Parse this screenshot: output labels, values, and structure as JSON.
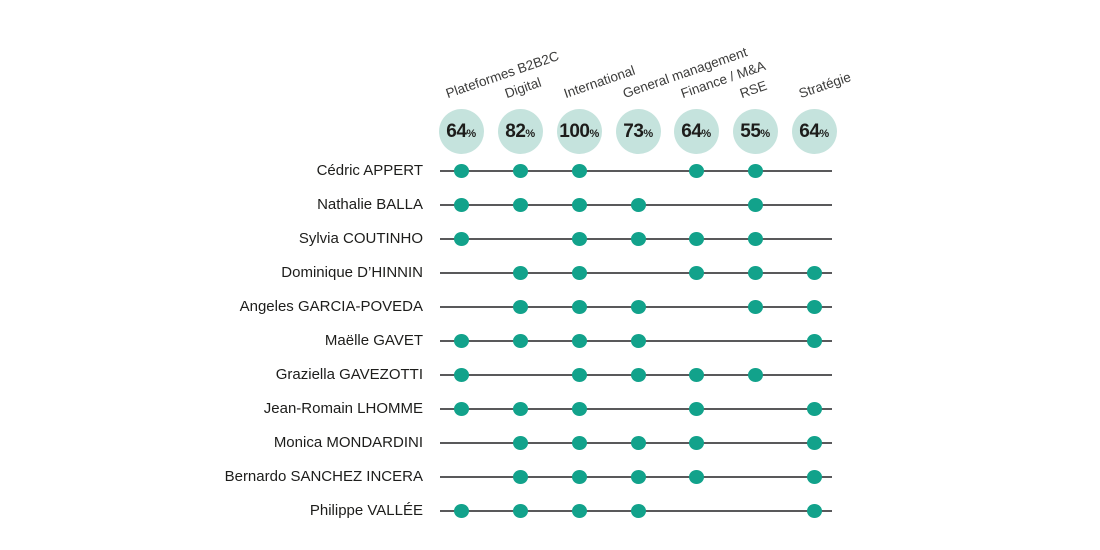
{
  "chart_data": {
    "type": "table",
    "description": "Board members skills matrix: dots mark each member's competencies; circles show percentage of board holding each skill",
    "percent_symbol": "%",
    "columns": [
      {
        "label": "Plateformes B2B2C",
        "percent": "64"
      },
      {
        "label": "Digital",
        "percent": "82"
      },
      {
        "label": "International",
        "percent": "100"
      },
      {
        "label": "General management",
        "percent": "73"
      },
      {
        "label": "Finance / M&A",
        "percent": "64"
      },
      {
        "label": "RSE",
        "percent": "55"
      },
      {
        "label": "Stratégie",
        "percent": "64"
      }
    ],
    "rows": [
      {
        "name": "Cédric APPERT",
        "skills": [
          1,
          1,
          1,
          0,
          1,
          1,
          0
        ]
      },
      {
        "name": "Nathalie BALLA",
        "skills": [
          1,
          1,
          1,
          1,
          0,
          1,
          0
        ]
      },
      {
        "name": "Sylvia COUTINHO",
        "skills": [
          1,
          0,
          1,
          1,
          1,
          1,
          0
        ]
      },
      {
        "name": "Dominique D’HINNIN",
        "skills": [
          0,
          1,
          1,
          0,
          1,
          1,
          1
        ]
      },
      {
        "name": "Angeles GARCIA-POVEDA",
        "skills": [
          0,
          1,
          1,
          1,
          0,
          1,
          1
        ]
      },
      {
        "name": "Maëlle GAVET",
        "skills": [
          1,
          1,
          1,
          1,
          0,
          0,
          1
        ]
      },
      {
        "name": "Graziella GAVEZOTTI",
        "skills": [
          1,
          0,
          1,
          1,
          1,
          1,
          0
        ]
      },
      {
        "name": "Jean-Romain LHOMME",
        "skills": [
          1,
          1,
          1,
          0,
          1,
          0,
          1
        ]
      },
      {
        "name": "Monica MONDARDINI",
        "skills": [
          0,
          1,
          1,
          1,
          1,
          0,
          1
        ]
      },
      {
        "name": "Bernardo SANCHEZ INCERA",
        "skills": [
          0,
          1,
          1,
          1,
          1,
          0,
          1
        ]
      },
      {
        "name": "Philippe VALLÉE",
        "skills": [
          1,
          1,
          1,
          1,
          0,
          0,
          1
        ]
      }
    ],
    "layout_hints": {
      "grid": "off",
      "legend": "none",
      "header_labels_rotated": true
    },
    "colors": {
      "dot": "#12a28b",
      "circle_bg": "#c5e3dd",
      "line": "#59595b",
      "text": "#1d1d1b"
    }
  }
}
